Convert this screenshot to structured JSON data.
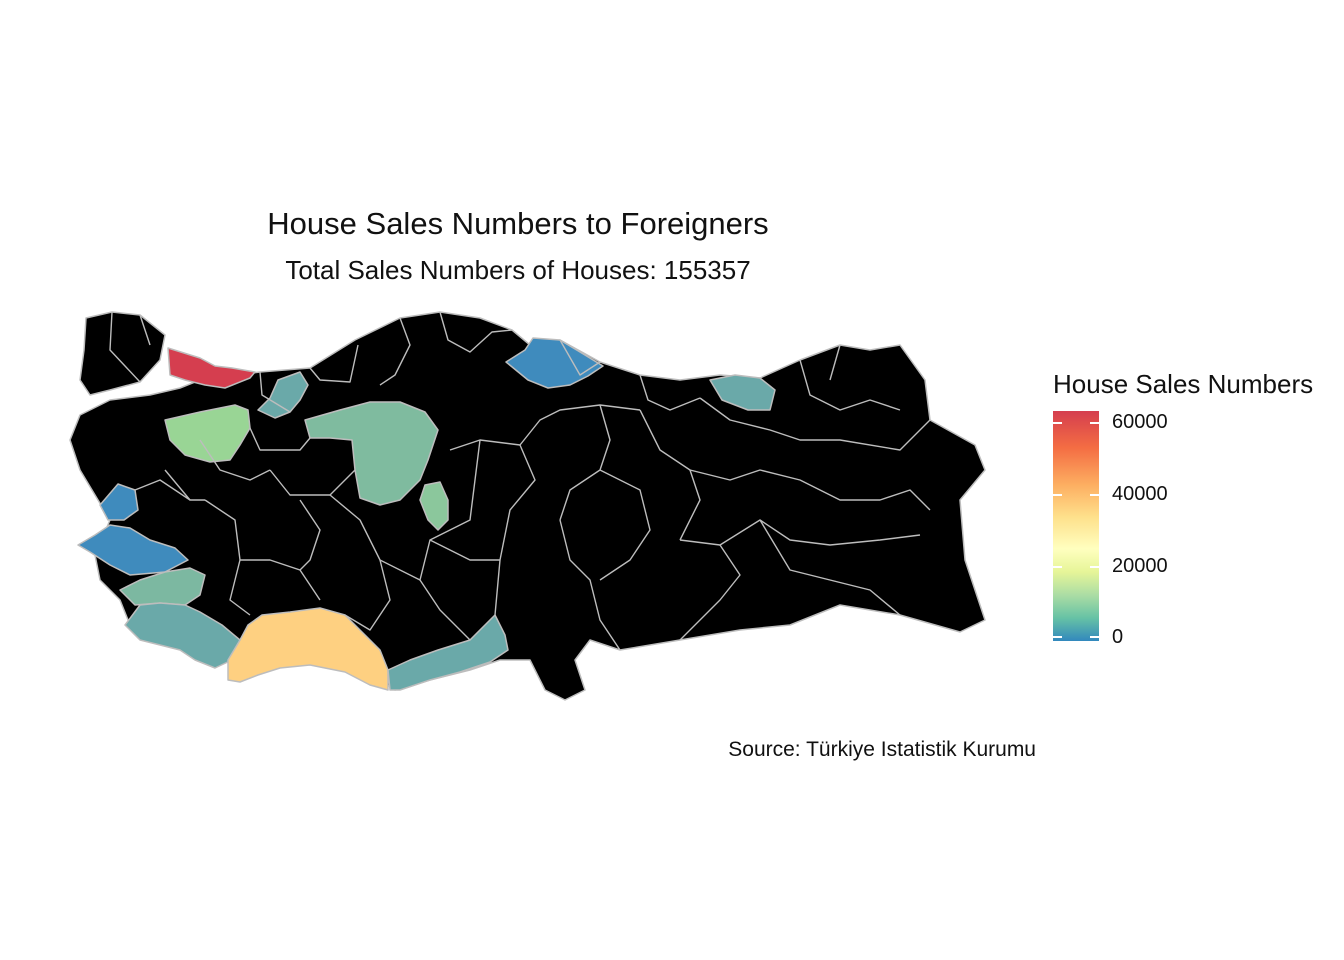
{
  "map": {
    "title": "House Sales Numbers to Foreigners",
    "subtitle": "Total Sales Numbers of Houses: 155357",
    "caption": "Source: Türkiye Istatistik Kurumu",
    "base_fill": "#000000",
    "border_color": "#bdbdbd"
  },
  "legend": {
    "title": "House Sales Numbers",
    "ticks": [
      "60000",
      "40000",
      "20000",
      "0"
    ],
    "scale_colors": [
      "#d53e4f",
      "#f46d43",
      "#fdae61",
      "#fee08b",
      "#ffffbf",
      "#e6f598",
      "#abdda4",
      "#66c2a5",
      "#3288bd"
    ]
  },
  "highlighted_regions": [
    {
      "id": "istanbul",
      "color": "#d53e4f"
    },
    {
      "id": "antalya",
      "color": "#fed081"
    },
    {
      "id": "bursa",
      "color": "#99d595"
    },
    {
      "id": "ankara",
      "color": "#7fbb9f"
    },
    {
      "id": "mugla",
      "color": "#6aa9a9"
    },
    {
      "id": "aydin",
      "color": "#7cb8a1"
    },
    {
      "id": "mersin",
      "color": "#6aa9a9"
    },
    {
      "id": "sakarya-kocaeli",
      "color": "#6aa9a9"
    },
    {
      "id": "trabzon",
      "color": "#6aa9a9"
    },
    {
      "id": "samsun",
      "color": "#3f8bbd"
    },
    {
      "id": "izmir",
      "color": "#3f8bbd"
    },
    {
      "id": "balikesir",
      "color": "#3f8bbd"
    },
    {
      "id": "kirikkale",
      "color": "#8bc79c"
    }
  ]
}
